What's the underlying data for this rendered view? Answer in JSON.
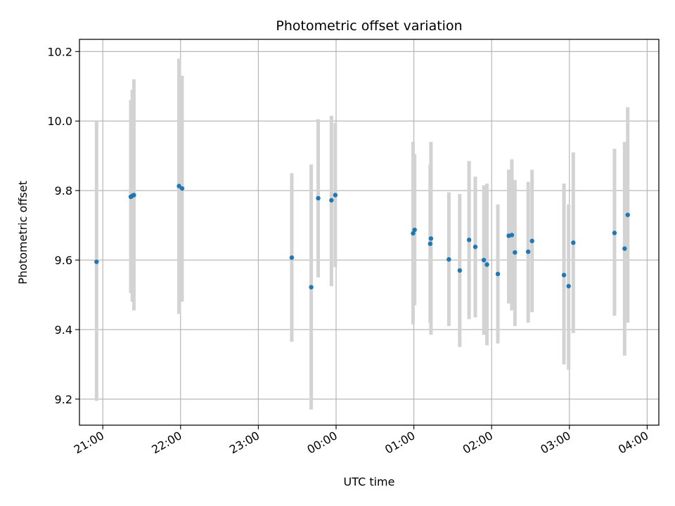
{
  "chart_data": {
    "type": "scatter",
    "title": "Photometric offset variation",
    "xlabel": "UTC time",
    "ylabel": "Photometric offset",
    "x_unit": "UTC hours (values past 24 are after midnight)",
    "xlim": [
      20.7,
      28.15
    ],
    "ylim": [
      9.125,
      10.235
    ],
    "x_ticks": [
      21,
      22,
      23,
      24,
      25,
      26,
      27,
      28
    ],
    "x_tick_labels": [
      "21:00",
      "22:00",
      "23:00",
      "00:00",
      "01:00",
      "02:00",
      "03:00",
      "04:00"
    ],
    "y_ticks": [
      9.2,
      9.4,
      9.6,
      9.8,
      10.0,
      10.2
    ],
    "y_tick_labels": [
      "9.2",
      "9.4",
      "9.6",
      "9.8",
      "10.0",
      "10.2"
    ],
    "grid": true,
    "colors": {
      "point": "#1f77b4",
      "errorbar": "#d3d3d3",
      "grid": "#b0b0b0"
    },
    "points": [
      {
        "x": 20.92,
        "y": 9.595,
        "lo": 9.195,
        "hi": 10.0
      },
      {
        "x": 21.36,
        "y": 9.782,
        "lo": 9.505,
        "hi": 10.06
      },
      {
        "x": 21.38,
        "y": 9.785,
        "lo": 9.48,
        "hi": 10.09
      },
      {
        "x": 21.4,
        "y": 9.787,
        "lo": 9.455,
        "hi": 10.12
      },
      {
        "x": 21.98,
        "y": 9.813,
        "lo": 9.445,
        "hi": 10.18
      },
      {
        "x": 22.02,
        "y": 9.806,
        "lo": 9.48,
        "hi": 10.13
      },
      {
        "x": 23.43,
        "y": 9.607,
        "lo": 9.365,
        "hi": 9.85
      },
      {
        "x": 23.68,
        "y": 9.522,
        "lo": 9.17,
        "hi": 9.875
      },
      {
        "x": 23.77,
        "y": 9.778,
        "lo": 9.55,
        "hi": 10.005
      },
      {
        "x": 23.94,
        "y": 9.772,
        "lo": 9.525,
        "hi": 10.015
      },
      {
        "x": 23.99,
        "y": 9.787,
        "lo": 9.58,
        "hi": 9.995
      },
      {
        "x": 24.99,
        "y": 9.677,
        "lo": 9.415,
        "hi": 9.94
      },
      {
        "x": 25.01,
        "y": 9.687,
        "lo": 9.47,
        "hi": 9.905
      },
      {
        "x": 25.21,
        "y": 9.647,
        "lo": 9.42,
        "hi": 9.875
      },
      {
        "x": 25.22,
        "y": 9.662,
        "lo": 9.385,
        "hi": 9.94
      },
      {
        "x": 25.45,
        "y": 9.602,
        "lo": 9.41,
        "hi": 9.795
      },
      {
        "x": 25.59,
        "y": 9.57,
        "lo": 9.35,
        "hi": 9.79
      },
      {
        "x": 25.71,
        "y": 9.658,
        "lo": 9.43,
        "hi": 9.885
      },
      {
        "x": 25.79,
        "y": 9.638,
        "lo": 9.435,
        "hi": 9.84
      },
      {
        "x": 25.9,
        "y": 9.6,
        "lo": 9.385,
        "hi": 9.815
      },
      {
        "x": 25.94,
        "y": 9.587,
        "lo": 9.355,
        "hi": 9.82
      },
      {
        "x": 26.08,
        "y": 9.56,
        "lo": 9.36,
        "hi": 9.76
      },
      {
        "x": 26.22,
        "y": 9.67,
        "lo": 9.475,
        "hi": 9.86
      },
      {
        "x": 26.26,
        "y": 9.672,
        "lo": 9.455,
        "hi": 9.89
      },
      {
        "x": 26.3,
        "y": 9.622,
        "lo": 9.41,
        "hi": 9.83
      },
      {
        "x": 26.47,
        "y": 9.624,
        "lo": 9.42,
        "hi": 9.825
      },
      {
        "x": 26.52,
        "y": 9.655,
        "lo": 9.45,
        "hi": 9.86
      },
      {
        "x": 26.93,
        "y": 9.557,
        "lo": 9.3,
        "hi": 9.82
      },
      {
        "x": 26.99,
        "y": 9.525,
        "lo": 9.285,
        "hi": 9.76
      },
      {
        "x": 27.05,
        "y": 9.65,
        "lo": 9.39,
        "hi": 9.91
      },
      {
        "x": 27.58,
        "y": 9.678,
        "lo": 9.44,
        "hi": 9.92
      },
      {
        "x": 27.71,
        "y": 9.633,
        "lo": 9.325,
        "hi": 9.94
      },
      {
        "x": 27.75,
        "y": 9.73,
        "lo": 9.42,
        "hi": 10.04
      }
    ]
  }
}
